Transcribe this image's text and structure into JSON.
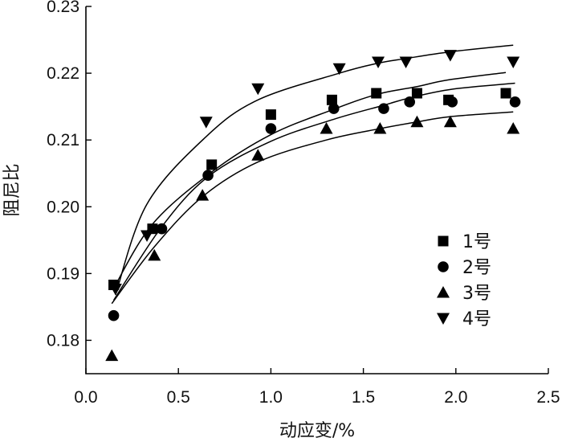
{
  "chart_data": {
    "type": "scatter",
    "xlabel": "动应变/%",
    "ylabel": "阻尼比",
    "xlim": [
      0.0,
      2.5
    ],
    "ylim": [
      0.175,
      0.23
    ],
    "xticks": [
      0.0,
      0.5,
      1.0,
      1.5,
      2.0,
      2.5
    ],
    "yticks": [
      0.18,
      0.19,
      0.2,
      0.21,
      0.22,
      0.23
    ],
    "xtick_labels": [
      "0.0",
      "0.5",
      "1.0",
      "1.5",
      "2.0",
      "2.5"
    ],
    "ytick_labels": [
      "0.18",
      "0.19",
      "0.20",
      "0.21",
      "0.22",
      "0.23"
    ],
    "grid": false,
    "legend_position": "right-middle",
    "series": [
      {
        "name": "1号",
        "marker": "square",
        "x": [
          0.15,
          0.36,
          0.68,
          1.0,
          1.33,
          1.57,
          1.79,
          1.96,
          2.27
        ],
        "y": [
          0.1883,
          0.1967,
          0.2063,
          0.2138,
          0.216,
          0.217,
          0.217,
          0.216,
          0.217
        ],
        "fit_y": [
          0.1878,
          0.1974,
          0.2052,
          0.2108,
          0.2145,
          0.2168,
          0.218,
          0.219,
          0.2201
        ]
      },
      {
        "name": "2号",
        "marker": "circle",
        "x": [
          0.15,
          0.41,
          0.66,
          1.0,
          1.34,
          1.61,
          1.75,
          1.98,
          2.32
        ],
        "y": [
          0.1837,
          0.1967,
          0.2047,
          0.2117,
          0.2147,
          0.2147,
          0.2157,
          0.2157,
          0.2157
        ],
        "fit_y": [
          0.186,
          0.197,
          0.2045,
          0.2098,
          0.2131,
          0.2152,
          0.2163,
          0.2176,
          0.2185
        ]
      },
      {
        "name": "3号",
        "marker": "triangle-up",
        "x": [
          0.14,
          0.37,
          0.63,
          0.93,
          1.3,
          1.59,
          1.79,
          1.97,
          2.31
        ],
        "y": [
          0.1777,
          0.1927,
          0.2017,
          0.2077,
          0.2117,
          0.2117,
          0.2127,
          0.2127,
          0.2117
        ],
        "fit_y": [
          0.1855,
          0.194,
          0.2015,
          0.2067,
          0.21,
          0.2117,
          0.2127,
          0.2135,
          0.2142
        ]
      },
      {
        "name": "4号",
        "marker": "triangle-down",
        "x": [
          0.16,
          0.33,
          0.65,
          0.93,
          1.37,
          1.58,
          1.73,
          1.97,
          2.31
        ],
        "y": [
          0.1877,
          0.1957,
          0.2127,
          0.2177,
          0.2207,
          0.2217,
          0.2217,
          0.2227,
          0.2217
        ],
        "fit_y": [
          0.1868,
          0.2004,
          0.2105,
          0.216,
          0.22,
          0.2215,
          0.2222,
          0.2232,
          0.2242
        ]
      }
    ]
  }
}
